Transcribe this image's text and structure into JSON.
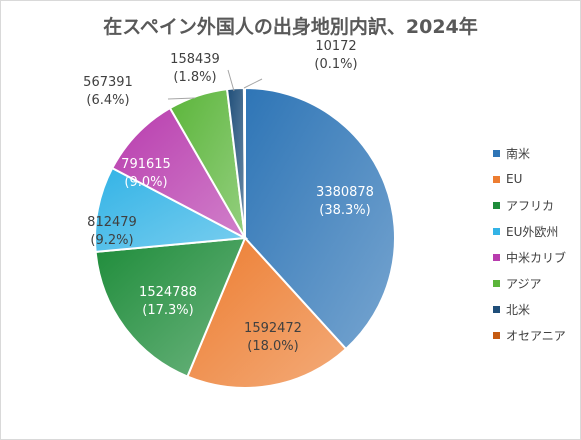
{
  "chart_data": {
    "type": "pie",
    "title": "在スペイン外国人の出身地別内訳、2024年",
    "legend_position": "right",
    "slices": [
      {
        "name": "南米",
        "value": 3380878,
        "percent_label": "(38.3%)",
        "color": "#2e75b6",
        "label_color": "#ffffff"
      },
      {
        "name": "EU",
        "value": 1592472,
        "percent_label": "(18.0%)",
        "color": "#ed7d31",
        "label_color": "#404040"
      },
      {
        "name": "アフリカ",
        "value": 1524788,
        "percent_label": "(17.3%)",
        "color": "#1e8c3a",
        "label_color": "#ffffff"
      },
      {
        "name": "EU外欧州",
        "value": 812479,
        "percent_label": "(9.2%)",
        "color": "#33b3e6",
        "label_color": "#404040"
      },
      {
        "name": "中米カリブ",
        "value": 791615,
        "percent_label": "(9.0%)",
        "color": "#b83cae",
        "label_color": "#ffffff"
      },
      {
        "name": "アジア",
        "value": 567391,
        "percent_label": "(6.4%)",
        "color": "#5bb53a",
        "label_color": "#404040"
      },
      {
        "name": "北米",
        "value": 158439,
        "percent_label": "(1.8%)",
        "color": "#1f4e79",
        "label_color": "#404040"
      },
      {
        "name": "オセアニア",
        "value": 10172,
        "percent_label": "(0.1%)",
        "color": "#c55a11",
        "label_color": "#404040"
      }
    ]
  }
}
